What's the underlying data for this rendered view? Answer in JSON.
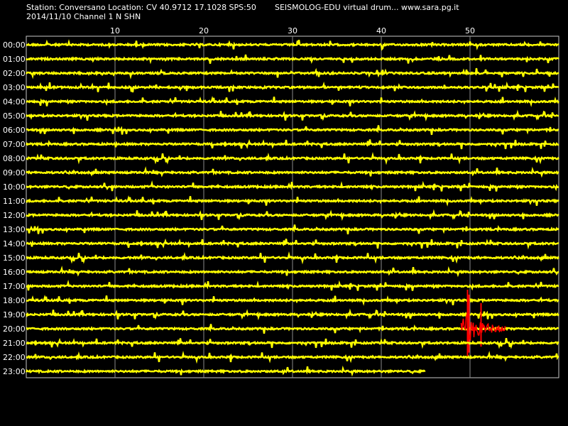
{
  "header": {
    "station_line": "Station: Conversano Location: CV 40.9712 17.1028 SPS:50",
    "date_line": "2014/11/10  Channel 1 N SHN",
    "app_line": "SEISMOLOG-EDU virtual drum... www.sara.pg.it"
  },
  "chart_data": {
    "type": "line",
    "xlim": [
      0,
      60
    ],
    "x_ticks": [
      "10",
      "20",
      "30",
      "40",
      "50"
    ],
    "x_tick_values": [
      10,
      20,
      30,
      40,
      50
    ],
    "rows": [
      "00:00",
      "01:00",
      "02:00",
      "03:00",
      "04:00",
      "05:00",
      "06:00",
      "07:00",
      "08:00",
      "09:00",
      "10:00",
      "11:00",
      "12:00",
      "13:00",
      "14:00",
      "15:00",
      "16:00",
      "17:00",
      "18:00",
      "19:00",
      "20:00",
      "21:00",
      "22:00",
      "23:00"
    ],
    "grid": true,
    "trace_color": "#ffff00",
    "event_color": "#ff0000",
    "last_row_end_minute": 45,
    "events": [
      {
        "row": "20:00",
        "start_minute": 49,
        "end_minute": 54
      }
    ]
  }
}
